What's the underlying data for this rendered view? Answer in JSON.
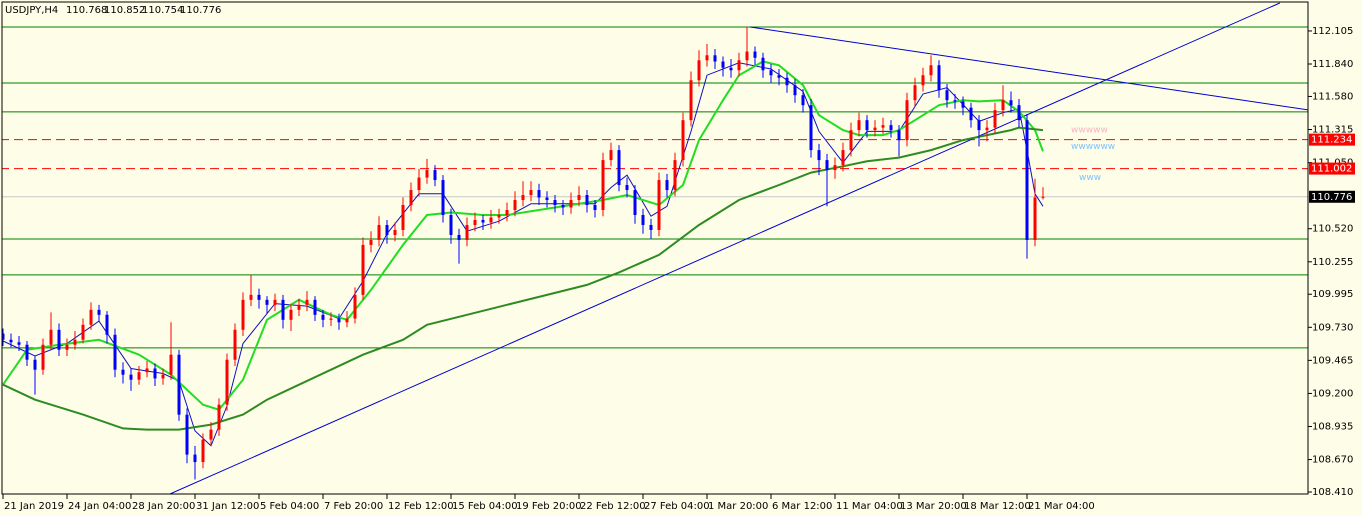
{
  "chart_data": {
    "type": "candlestick",
    "title": "USDJPY,H4",
    "up_color": "#ff0000",
    "down_color": "#0000ff",
    "ylim": [
      108.386,
      112.353
    ],
    "xlim": [
      -0.375,
      163.125
    ],
    "yticks": [
      112.105,
      {
        "value": 111.84,
        "label": "111.840"
      },
      {
        "value": 111.58,
        "label": "111.580"
      },
      111.315,
      {
        "value": 111.05,
        "label": "111.050"
      },
      {
        "value": 110.52,
        "label": "110.520"
      },
      110.255,
      109.995,
      {
        "value": 109.73,
        "label": "109.730"
      },
      109.465,
      {
        "value": 109.2,
        "label": "109.200"
      },
      108.935,
      {
        "value": 108.67,
        "label": "108.670"
      },
      {
        "value": 108.41,
        "label": "108.410"
      }
    ],
    "xticks": [
      {
        "value": 0,
        "label": "21 Jan 2019"
      },
      {
        "value": 8,
        "label": "24 Jan 04:00"
      },
      {
        "value": 16,
        "label": "28 Jan 20:00"
      },
      {
        "value": 24,
        "label": "31 Jan 12:00"
      },
      {
        "value": 32,
        "label": "5 Feb 04:00"
      },
      {
        "value": 40,
        "label": "7 Feb 20:00"
      },
      {
        "value": 48,
        "label": "12 Feb 12:00"
      },
      {
        "value": 56,
        "label": "15 Feb 04:00"
      },
      {
        "value": 64,
        "label": "19 Feb 20:00"
      },
      {
        "value": 72,
        "label": "22 Feb 12:00"
      },
      {
        "value": 80,
        "label": "27 Feb 04:00"
      },
      {
        "value": 88,
        "label": "1 Mar 20:00"
      },
      {
        "value": 96,
        "label": "6 Mar 12:00"
      },
      {
        "value": 104,
        "label": "11 Mar 04:00"
      },
      {
        "value": 112,
        "label": "13 Mar 20:00"
      },
      {
        "value": 120,
        "label": "18 Mar 12:00"
      },
      {
        "value": 128,
        "label": "21 Mar 04:00"
      }
    ],
    "ohlc": [
      [
        109.68,
        109.72,
        109.58,
        109.63
      ],
      [
        109.63,
        109.68,
        109.57,
        109.61
      ],
      [
        109.61,
        109.66,
        109.54,
        109.59
      ],
      [
        109.59,
        109.62,
        109.42,
        109.47
      ],
      [
        109.47,
        109.5,
        109.19,
        109.39
      ],
      [
        109.39,
        109.64,
        109.35,
        109.59
      ],
      [
        109.59,
        109.85,
        109.55,
        109.71
      ],
      [
        109.71,
        109.76,
        109.5,
        109.55
      ],
      [
        109.55,
        109.64,
        109.5,
        109.59
      ],
      [
        109.59,
        109.7,
        109.55,
        109.63
      ],
      [
        109.63,
        109.8,
        109.6,
        109.75
      ],
      [
        109.75,
        109.93,
        109.71,
        109.87
      ],
      [
        109.87,
        109.91,
        109.78,
        109.83
      ],
      [
        109.83,
        109.86,
        109.6,
        109.67
      ],
      [
        109.67,
        109.72,
        109.33,
        109.39
      ],
      [
        109.39,
        109.45,
        109.28,
        109.35
      ],
      [
        109.35,
        109.4,
        109.22,
        109.31
      ],
      [
        109.31,
        109.42,
        109.27,
        109.37
      ],
      [
        109.37,
        109.46,
        109.33,
        109.4
      ],
      [
        109.4,
        109.44,
        109.26,
        109.32
      ],
      [
        109.32,
        109.4,
        109.27,
        109.35
      ],
      [
        109.35,
        109.77,
        109.31,
        109.51
      ],
      [
        109.51,
        109.55,
        108.98,
        109.03
      ],
      [
        109.03,
        109.08,
        108.64,
        108.71
      ],
      [
        108.71,
        108.78,
        108.51,
        108.65
      ],
      [
        108.65,
        108.88,
        108.6,
        108.83
      ],
      [
        108.83,
        108.97,
        108.78,
        108.91
      ],
      [
        108.91,
        109.16,
        108.86,
        109.11
      ],
      [
        109.11,
        109.52,
        109.06,
        109.47
      ],
      [
        109.47,
        109.76,
        109.42,
        109.71
      ],
      [
        109.71,
        110.01,
        109.66,
        109.95
      ],
      [
        109.95,
        110.15,
        109.9,
        109.99
      ],
      [
        109.99,
        110.04,
        109.88,
        109.95
      ],
      [
        109.95,
        109.98,
        109.84,
        109.91
      ],
      [
        109.91,
        110,
        109.86,
        109.95
      ],
      [
        109.95,
        109.99,
        109.72,
        109.79
      ],
      [
        109.79,
        109.92,
        109.7,
        109.87
      ],
      [
        109.87,
        109.96,
        109.82,
        109.91
      ],
      [
        109.91,
        110.02,
        109.86,
        109.95
      ],
      [
        109.95,
        109.98,
        109.78,
        109.83
      ],
      [
        109.83,
        109.87,
        109.73,
        109.79
      ],
      [
        109.79,
        109.85,
        109.74,
        109.8
      ],
      [
        109.8,
        109.84,
        109.71,
        109.77
      ],
      [
        109.77,
        109.86,
        109.73,
        109.8
      ],
      [
        109.8,
        110.05,
        109.76,
        109.99
      ],
      [
        109.99,
        110.45,
        109.95,
        110.39
      ],
      [
        110.39,
        110.5,
        110.33,
        110.43
      ],
      [
        110.43,
        110.62,
        110.38,
        110.55
      ],
      [
        110.55,
        110.59,
        110.4,
        110.47
      ],
      [
        110.47,
        110.57,
        110.42,
        110.51
      ],
      [
        110.51,
        110.77,
        110.46,
        110.71
      ],
      [
        110.71,
        110.89,
        110.66,
        110.83
      ],
      [
        110.83,
        111,
        110.78,
        110.93
      ],
      [
        110.93,
        111.08,
        110.88,
        110.99
      ],
      [
        110.99,
        111.03,
        110.86,
        110.91
      ],
      [
        110.91,
        110.95,
        110.57,
        110.63
      ],
      [
        110.63,
        110.68,
        110.4,
        110.47
      ],
      [
        110.47,
        110.52,
        110.24,
        110.43
      ],
      [
        110.43,
        110.61,
        110.38,
        110.55
      ],
      [
        110.55,
        110.65,
        110.5,
        110.59
      ],
      [
        110.59,
        110.63,
        110.51,
        110.57
      ],
      [
        110.57,
        110.67,
        110.52,
        110.61
      ],
      [
        110.61,
        110.68,
        110.56,
        110.63
      ],
      [
        110.63,
        110.73,
        110.58,
        110.67
      ],
      [
        110.67,
        110.82,
        110.62,
        110.75
      ],
      [
        110.75,
        110.9,
        110.7,
        110.79
      ],
      [
        110.79,
        110.9,
        110.74,
        110.83
      ],
      [
        110.83,
        110.88,
        110.71,
        110.77
      ],
      [
        110.77,
        110.82,
        110.69,
        110.75
      ],
      [
        110.75,
        110.79,
        110.65,
        110.71
      ],
      [
        110.71,
        110.75,
        110.63,
        110.69
      ],
      [
        110.69,
        110.81,
        110.64,
        110.75
      ],
      [
        110.75,
        110.86,
        110.7,
        110.79
      ],
      [
        110.79,
        110.83,
        110.65,
        110.71
      ],
      [
        110.71,
        110.75,
        110.61,
        110.67
      ],
      [
        110.67,
        111.13,
        110.62,
        111.07
      ],
      [
        111.07,
        111.21,
        111.02,
        111.15
      ],
      [
        111.15,
        111.19,
        110.82,
        110.87
      ],
      [
        110.87,
        110.93,
        110.77,
        110.83
      ],
      [
        110.83,
        110.87,
        110.56,
        110.63
      ],
      [
        110.63,
        110.68,
        110.48,
        110.55
      ],
      [
        110.55,
        110.6,
        110.44,
        110.51
      ],
      [
        110.51,
        110.97,
        110.46,
        110.91
      ],
      [
        110.91,
        110.96,
        110.77,
        110.83
      ],
      [
        110.83,
        111.13,
        110.78,
        111.07
      ],
      [
        111.07,
        111.45,
        111.02,
        111.39
      ],
      [
        111.39,
        111.78,
        111.34,
        111.71
      ],
      [
        111.71,
        111.95,
        111.66,
        111.87
      ],
      [
        111.87,
        112,
        111.82,
        111.91
      ],
      [
        111.91,
        111.96,
        111.8,
        111.86
      ],
      [
        111.86,
        111.9,
        111.74,
        111.81
      ],
      [
        111.81,
        111.88,
        111.73,
        111.79
      ],
      [
        111.79,
        111.93,
        111.74,
        111.87
      ],
      [
        111.87,
        112.14,
        111.82,
        111.94
      ],
      [
        111.94,
        111.98,
        111.83,
        111.89
      ],
      [
        111.89,
        111.93,
        111.73,
        111.79
      ],
      [
        111.79,
        111.84,
        111.69,
        111.75
      ],
      [
        111.75,
        111.8,
        111.67,
        111.73
      ],
      [
        111.73,
        111.77,
        111.61,
        111.67
      ],
      [
        111.67,
        111.72,
        111.53,
        111.59
      ],
      [
        111.59,
        111.64,
        111.45,
        111.51
      ],
      [
        111.51,
        111.56,
        111.09,
        111.15
      ],
      [
        111.15,
        111.2,
        110.95,
        111.07
      ],
      [
        111.07,
        111.12,
        110.7,
        110.99
      ],
      [
        110.99,
        111.09,
        110.92,
        111.03
      ],
      [
        111.03,
        111.21,
        110.98,
        111.15
      ],
      [
        111.15,
        111.37,
        111.1,
        111.31
      ],
      [
        111.31,
        111.45,
        111.26,
        111.39
      ],
      [
        111.39,
        111.43,
        111.25,
        111.31
      ],
      [
        111.31,
        111.39,
        111.26,
        111.33
      ],
      [
        111.33,
        111.41,
        111.28,
        111.35
      ],
      [
        111.35,
        111.39,
        111.25,
        111.31
      ],
      [
        111.31,
        111.35,
        111.1,
        111.23
      ],
      [
        111.23,
        111.61,
        111.18,
        111.55
      ],
      [
        111.55,
        111.73,
        111.5,
        111.67
      ],
      [
        111.67,
        111.81,
        111.62,
        111.75
      ],
      [
        111.75,
        111.91,
        111.7,
        111.83
      ],
      [
        111.83,
        111.87,
        111.57,
        111.63
      ],
      [
        111.63,
        111.68,
        111.49,
        111.55
      ],
      [
        111.55,
        111.6,
        111.48,
        111.54
      ],
      [
        111.54,
        111.58,
        111.43,
        111.49
      ],
      [
        111.49,
        111.53,
        111.33,
        111.39
      ],
      [
        111.39,
        111.43,
        111.18,
        111.31
      ],
      [
        111.31,
        111.39,
        111.22,
        111.33
      ],
      [
        111.33,
        111.53,
        111.28,
        111.47
      ],
      [
        111.47,
        111.67,
        111.42,
        111.55
      ],
      [
        111.55,
        111.62,
        111.45,
        111.51
      ],
      [
        111.51,
        111.56,
        111.33,
        111.39
      ],
      [
        111.39,
        111.44,
        110.28,
        110.43
      ],
      [
        110.43,
        110.92,
        110.38,
        110.77
      ],
      [
        110.768,
        110.852,
        110.754,
        110.776
      ]
    ],
    "indicators": [
      {
        "color": "#1010c0",
        "width": 1,
        "x": [
          0,
          4,
          8,
          12,
          16,
          20,
          22,
          24,
          26,
          28,
          30,
          34,
          38,
          42,
          45,
          48,
          52,
          55,
          58,
          62,
          66,
          70,
          74,
          76,
          78,
          81,
          83,
          86,
          88,
          92,
          96,
          100,
          102,
          105,
          108,
          112,
          115,
          118,
          122,
          125,
          127,
          128,
          129,
          130
        ],
        "values": [
          109.62,
          109.5,
          109.6,
          109.78,
          109.4,
          109.36,
          109.3,
          108.9,
          108.78,
          109.1,
          109.6,
          109.92,
          109.9,
          109.8,
          110.1,
          110.48,
          110.8,
          110.8,
          110.5,
          110.58,
          110.72,
          110.72,
          110.72,
          110.85,
          110.95,
          110.62,
          110.7,
          111.3,
          111.75,
          111.85,
          111.8,
          111.62,
          111.3,
          111.05,
          111.3,
          111.3,
          111.6,
          111.65,
          111.38,
          111.45,
          111.48,
          111.15,
          110.8,
          110.7
        ]
      },
      {
        "color": "#22dd22",
        "width": 2,
        "x": [
          0,
          3,
          7,
          12,
          17,
          21,
          25,
          27,
          30,
          33,
          37,
          41,
          43,
          46,
          50,
          53,
          56,
          60,
          63,
          67,
          71,
          75,
          78,
          82,
          85,
          87,
          90,
          92,
          95,
          97,
          100,
          102,
          105,
          107,
          110,
          112,
          115,
          117,
          120,
          122,
          125,
          127,
          129,
          130
        ],
        "values": [
          109.27,
          109.55,
          109.59,
          109.63,
          109.51,
          109.35,
          109.11,
          109.07,
          109.31,
          109.79,
          109.95,
          109.83,
          109.79,
          110.03,
          110.39,
          110.63,
          110.65,
          110.63,
          110.63,
          110.67,
          110.71,
          110.75,
          110.79,
          110.71,
          110.87,
          111.23,
          111.55,
          111.75,
          111.86,
          111.83,
          111.67,
          111.43,
          111.31,
          111.27,
          111.27,
          111.31,
          111.43,
          111.51,
          111.55,
          111.54,
          111.55,
          111.46,
          111.31,
          111.14
        ]
      },
      {
        "color": "#2e8b22",
        "width": 2,
        "x": [
          0,
          4,
          10,
          15,
          18,
          22,
          26,
          30,
          33,
          37,
          41,
          45,
          50,
          53,
          58,
          63,
          68,
          73,
          77,
          82,
          87,
          92,
          97,
          101,
          105,
          108,
          112,
          116,
          120,
          123,
          126,
          127,
          130
        ],
        "values": [
          109.27,
          109.15,
          109.03,
          108.92,
          108.91,
          108.91,
          108.95,
          109.03,
          109.15,
          109.27,
          109.39,
          109.51,
          109.63,
          109.75,
          109.83,
          109.91,
          109.99,
          110.07,
          110.17,
          110.31,
          110.55,
          110.75,
          110.87,
          110.97,
          111.02,
          111.06,
          111.09,
          111.15,
          111.23,
          111.27,
          111.31,
          111.33,
          111.31
        ]
      }
    ],
    "trendlines": [
      {
        "color": "#0000cc",
        "x": [
          20.9,
          159.6
        ],
        "values": [
          108.395,
          112.329
        ]
      },
      {
        "color": "#0000cc",
        "x": [
          93.4,
          169.9
        ],
        "values": [
          112.137,
          111.408
        ]
      }
    ],
    "levels": [
      {
        "value": 112.137,
        "color": "#008000"
      },
      {
        "value": 111.688,
        "color": "#008000"
      },
      {
        "value": 111.456,
        "color": "#008000"
      },
      {
        "value": 110.438,
        "color": "#008000"
      },
      {
        "value": 110.15,
        "color": "#008000"
      },
      {
        "value": 109.565,
        "color": "#008000"
      }
    ],
    "alerts": [
      {
        "value": 111.234,
        "color": "#ff0000"
      },
      {
        "value": 111.002,
        "color": "#ff0000"
      }
    ],
    "annotations": [
      {
        "text": "wwwww",
        "color": "#ffb0c0",
        "x": 133.5,
        "value": 111.31
      },
      {
        "text": "wwwwww",
        "color": "#80c0ff",
        "x": 133.5,
        "value": 111.18
      },
      {
        "text": "www",
        "color": "#80c0ff",
        "x": 134.5,
        "value": 110.93
      }
    ]
  }
}
